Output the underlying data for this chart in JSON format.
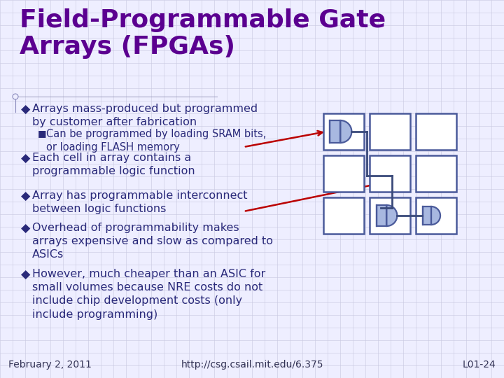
{
  "title_line1": "Field-Programmable Gate",
  "title_line2": "Arrays (FPGAs)",
  "title_color": "#5B0090",
  "title_fontsize": 26,
  "bg_color": "#EEEEFF",
  "grid_color": "#C8C8E0",
  "text_color": "#2A2A7A",
  "bullet_color": "#2A2A7A",
  "bullet_char": "◆",
  "sub_bullet_char": "■",
  "bullet_fontsize": 11.5,
  "sub_bullet_fontsize": 10.5,
  "footer_left": "February 2, 2011",
  "footer_center": "http://csg.csail.mit.edu/6.375",
  "footer_right": "L01-24",
  "footer_fontsize": 10,
  "box_edge_color": "#4A5A9A",
  "box_fill": "#FFFFFF",
  "gate_fill": "#A8B8E0",
  "arrow_color": "#BB0000",
  "wire_color": "#3A4A7A",
  "bullets": [
    {
      "text": "Arrays mass-produced but programmed\nby customer after fabrication",
      "sub": [
        "Can be programmed by loading SRAM bits,\nor loading FLASH memory"
      ]
    },
    {
      "text": "Each cell in array contains a\nprogrammable logic function",
      "sub": []
    },
    {
      "text": "Array has programmable interconnect\nbetween logic functions",
      "sub": []
    },
    {
      "text": "Overhead of programmability makes\narrays expensive and slow as compared to\nASICs",
      "sub": []
    },
    {
      "text": "However, much cheaper than an ASIC for\nsmall volumes because NRE costs do not\ninclude chip development costs (only\ninclude programming)",
      "sub": []
    }
  ]
}
